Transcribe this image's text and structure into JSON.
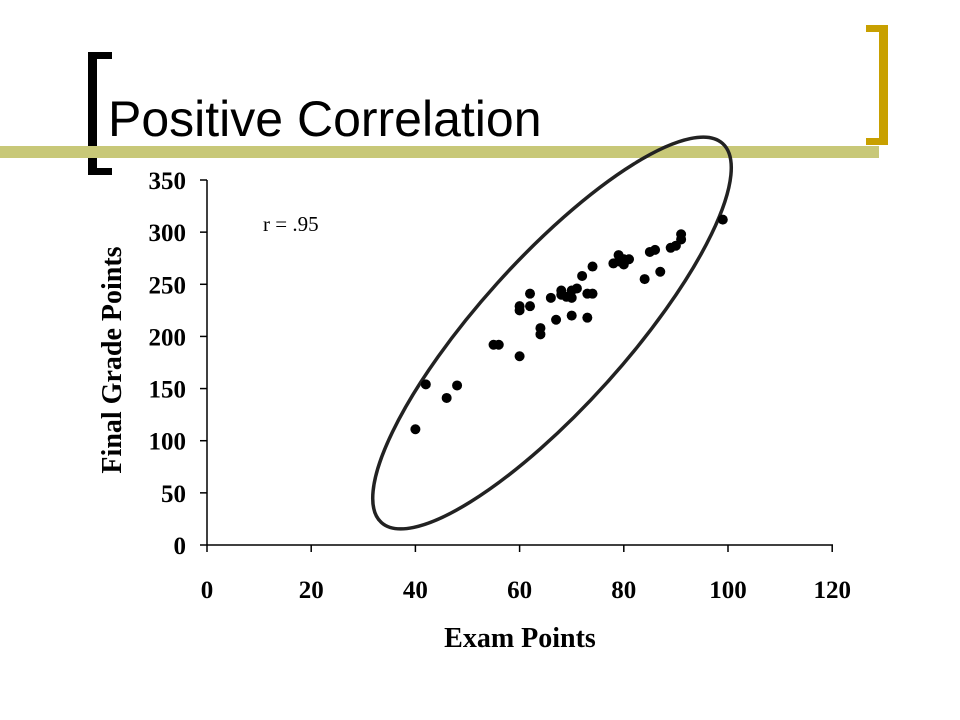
{
  "slide": {
    "title": "Positive Correlation"
  },
  "colors": {
    "accent": "#c8a000",
    "bar": "#c8c878",
    "ink": "#000000"
  },
  "chart_data": {
    "type": "scatter",
    "title": "",
    "xlabel": "Exam Points",
    "ylabel": "Final Grade Points",
    "xlim": [
      0,
      120
    ],
    "ylim": [
      0,
      350
    ],
    "xticks": [
      0,
      20,
      40,
      60,
      80,
      100,
      120
    ],
    "yticks": [
      0,
      50,
      100,
      150,
      200,
      250,
      300,
      350
    ],
    "grid": false,
    "annotation": "r = .95",
    "highlight": "ellipse around points",
    "series": [
      {
        "points": [
          [
            40,
            111
          ],
          [
            42,
            154
          ],
          [
            46,
            141
          ],
          [
            48,
            153
          ],
          [
            55,
            192
          ],
          [
            56,
            192
          ],
          [
            60,
            181
          ],
          [
            60,
            225
          ],
          [
            60,
            229
          ],
          [
            62,
            229
          ],
          [
            62,
            241
          ],
          [
            64,
            202
          ],
          [
            64,
            208
          ],
          [
            66,
            237
          ],
          [
            67,
            216
          ],
          [
            68,
            240
          ],
          [
            68,
            244
          ],
          [
            69,
            238
          ],
          [
            70,
            244
          ],
          [
            70,
            237
          ],
          [
            70,
            220
          ],
          [
            71,
            246
          ],
          [
            72,
            258
          ],
          [
            73,
            218
          ],
          [
            73,
            241
          ],
          [
            74,
            241
          ],
          [
            74,
            267
          ],
          [
            78,
            270
          ],
          [
            79,
            272
          ],
          [
            79,
            278
          ],
          [
            80,
            269
          ],
          [
            80,
            274
          ],
          [
            81,
            274
          ],
          [
            84,
            255
          ],
          [
            85,
            281
          ],
          [
            86,
            283
          ],
          [
            87,
            262
          ],
          [
            89,
            285
          ],
          [
            90,
            287
          ],
          [
            91,
            293
          ],
          [
            91,
            298
          ],
          [
            99,
            312
          ]
        ]
      }
    ]
  }
}
